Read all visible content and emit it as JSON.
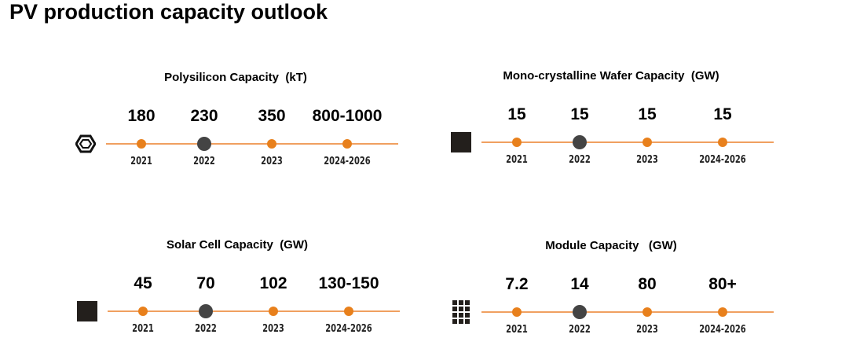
{
  "title": "PV production capacity outlook",
  "chart_data": [
    {
      "type": "timeline",
      "title": "Polysilicon Capacity  (kT)",
      "icon": "hexagon-nut-icon",
      "categories": [
        "2021",
        "2022",
        "2023",
        "2024-2026"
      ],
      "values": [
        "180",
        "230",
        "350",
        "800-1000"
      ],
      "highlight": "2022"
    },
    {
      "type": "timeline",
      "title": "Mono-crystalline Wafer Capacity  (GW)",
      "icon": "square-icon",
      "categories": [
        "2021",
        "2022",
        "2023",
        "2024-2026"
      ],
      "values": [
        "15",
        "15",
        "15",
        "15"
      ],
      "highlight": "2022"
    },
    {
      "type": "timeline",
      "title": "Solar Cell Capacity  (GW)",
      "icon": "cell-icon",
      "categories": [
        "2021",
        "2022",
        "2023",
        "2024-2026"
      ],
      "values": [
        "45",
        "70",
        "102",
        "130-150"
      ],
      "highlight": "2022"
    },
    {
      "type": "timeline",
      "title": "Module Capacity   (GW)",
      "icon": "module-grid-icon",
      "categories": [
        "2021",
        "2022",
        "2023",
        "2024-2026"
      ],
      "values": [
        "7.2",
        "14",
        "80",
        "80+"
      ],
      "highlight": "2022"
    }
  ],
  "colors": {
    "line": "#f0a060",
    "dot": "#e8801c",
    "highlight": "#444444"
  }
}
